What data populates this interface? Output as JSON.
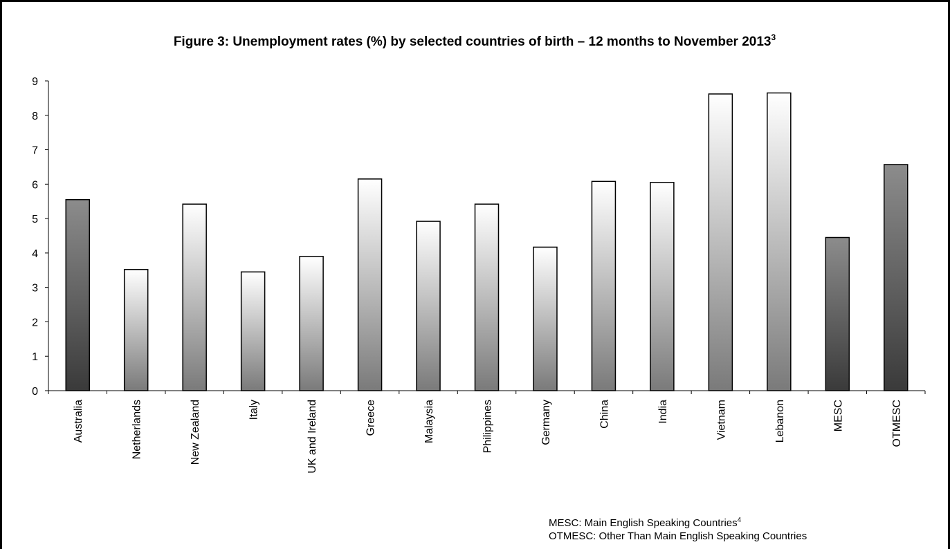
{
  "chart_data": {
    "type": "bar",
    "title": "Figure 3: Unemployment rates (%) by selected countries of birth – 12 months to November 2013",
    "title_superscript": "3",
    "xlabel": "",
    "ylabel": "",
    "ylim": [
      0,
      9
    ],
    "yticks": [
      "0",
      "1",
      "2",
      "3",
      "4",
      "5",
      "6",
      "7",
      "8",
      "9"
    ],
    "categories": [
      "Australia",
      "Netherlands",
      "New Zealand",
      "Italy",
      "UK and Ireland",
      "Greece",
      "Malaysia",
      "Philippines",
      "Germany",
      "China",
      "India",
      "Vietnam",
      "Lebanon",
      "MESC",
      "OTMESC"
    ],
    "values": [
      5.55,
      3.52,
      5.42,
      3.45,
      3.9,
      6.15,
      4.92,
      5.42,
      4.17,
      6.08,
      6.05,
      8.62,
      8.65,
      4.45,
      6.57
    ],
    "bar_styles": [
      "dark",
      "light",
      "light",
      "light",
      "light",
      "light",
      "light",
      "light",
      "light",
      "light",
      "light",
      "light",
      "light",
      "dark",
      "dark"
    ],
    "grid": false,
    "legend": "none",
    "colors": {
      "dark_bottom": "#3a3a3a",
      "dark_top": "#8c8c8c",
      "light_bottom": "#7a7a7a",
      "light_top": "#ffffff"
    }
  },
  "notes": {
    "mesc_text": "MESC: Main English Speaking Countries",
    "mesc_superscript": "4",
    "otmesc_text": "OTMESC: Other Than Main English Speaking Countries"
  }
}
